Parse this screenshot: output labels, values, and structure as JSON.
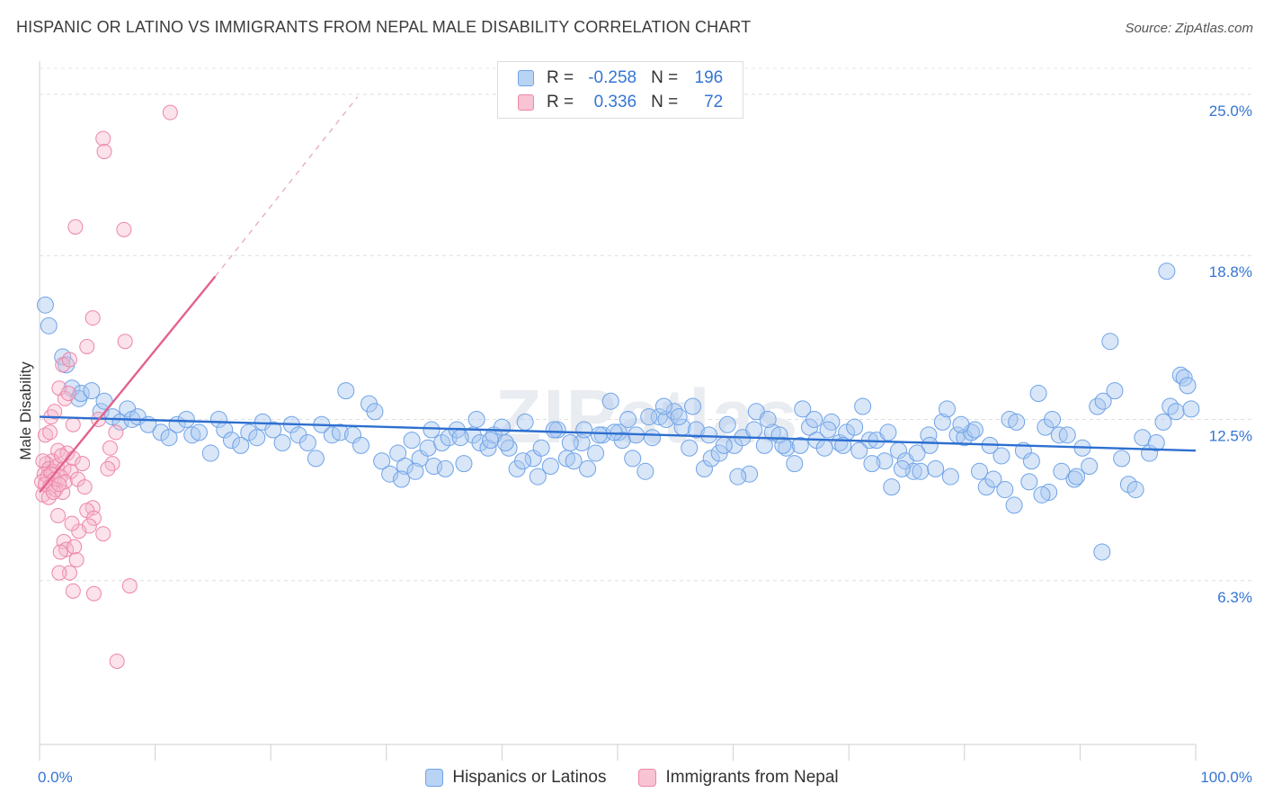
{
  "chart_data": {
    "type": "scatter",
    "title": "HISPANIC OR LATINO VS IMMIGRANTS FROM NEPAL MALE DISABILITY CORRELATION CHART",
    "source": "Source: ZipAtlas.com",
    "ylabel": "Male Disability",
    "xlabel": "",
    "xlim": [
      0,
      100
    ],
    "ylim": [
      0,
      26
    ],
    "x_tick_labels": [
      "0.0%",
      "100.0%"
    ],
    "y_ticks": [
      {
        "value": 6.3,
        "label": "6.3%"
      },
      {
        "value": 12.5,
        "label": "12.5%"
      },
      {
        "value": 18.8,
        "label": "18.8%"
      },
      {
        "value": 25.0,
        "label": "25.0%"
      }
    ],
    "grid": true,
    "watermark": "ZIPatlas",
    "legend_stats": [
      {
        "name": "Hispanics or Latinos",
        "r_label": "R =",
        "r": "-0.258",
        "n_label": "N =",
        "n": "196",
        "color": "#6fa3e8",
        "fill": "#b9d3f4"
      },
      {
        "name": "Immigrants from Nepal",
        "r_label": "R =",
        "r": "0.336",
        "n_label": "N =",
        "n": "72",
        "color": "#ee86a6",
        "fill": "#f8c4d4"
      }
    ],
    "series": [
      {
        "name": "Hispanics or Latinos",
        "color": "#6fa3e8",
        "fill": "rgba(168,200,240,0.45)",
        "trend": {
          "x0": 0,
          "y0": 12.6,
          "x1": 100,
          "y1": 11.3,
          "color": "#2d6fd0"
        },
        "points": [
          [
            0.5,
            16.9
          ],
          [
            0.8,
            16.1
          ],
          [
            2.0,
            14.9
          ],
          [
            2.3,
            14.6
          ],
          [
            2.8,
            13.7
          ],
          [
            3.4,
            13.3
          ],
          [
            3.6,
            13.5
          ],
          [
            4.5,
            13.6
          ],
          [
            5.3,
            12.8
          ],
          [
            5.6,
            13.2
          ],
          [
            6.3,
            12.6
          ],
          [
            7.0,
            12.4
          ],
          [
            7.6,
            12.9
          ],
          [
            8.0,
            12.5
          ],
          [
            8.5,
            12.6
          ],
          [
            9.4,
            12.3
          ],
          [
            10.5,
            12.0
          ],
          [
            11.2,
            11.8
          ],
          [
            11.9,
            12.3
          ],
          [
            12.7,
            12.5
          ],
          [
            13.2,
            11.9
          ],
          [
            13.8,
            12.0
          ],
          [
            14.8,
            11.2
          ],
          [
            15.5,
            12.5
          ],
          [
            16.0,
            12.1
          ],
          [
            16.6,
            11.7
          ],
          [
            17.4,
            11.5
          ],
          [
            18.1,
            12.0
          ],
          [
            18.8,
            11.8
          ],
          [
            19.3,
            12.4
          ],
          [
            20.2,
            12.1
          ],
          [
            21.0,
            11.6
          ],
          [
            21.8,
            12.3
          ],
          [
            22.4,
            11.9
          ],
          [
            23.2,
            11.6
          ],
          [
            23.9,
            11.0
          ],
          [
            24.4,
            12.3
          ],
          [
            25.3,
            11.9
          ],
          [
            26.0,
            12.0
          ],
          [
            26.5,
            13.6
          ],
          [
            27.1,
            11.9
          ],
          [
            27.8,
            11.5
          ],
          [
            28.5,
            13.1
          ],
          [
            29.0,
            12.8
          ],
          [
            29.6,
            10.9
          ],
          [
            30.3,
            10.4
          ],
          [
            31.0,
            11.2
          ],
          [
            31.6,
            10.7
          ],
          [
            32.2,
            11.7
          ],
          [
            32.9,
            11.0
          ],
          [
            33.6,
            11.4
          ],
          [
            34.1,
            10.7
          ],
          [
            34.8,
            11.6
          ],
          [
            35.4,
            11.8
          ],
          [
            36.1,
            12.1
          ],
          [
            36.7,
            10.8
          ],
          [
            37.5,
            11.9
          ],
          [
            38.1,
            11.6
          ],
          [
            38.8,
            11.4
          ],
          [
            39.3,
            11.9
          ],
          [
            40.0,
            12.2
          ],
          [
            40.6,
            11.4
          ],
          [
            41.3,
            10.6
          ],
          [
            42.0,
            12.4
          ],
          [
            42.7,
            11.0
          ],
          [
            43.4,
            11.4
          ],
          [
            44.2,
            10.7
          ],
          [
            44.8,
            12.1
          ],
          [
            45.6,
            11.0
          ],
          [
            46.2,
            10.9
          ],
          [
            46.9,
            11.6
          ],
          [
            47.4,
            10.6
          ],
          [
            48.1,
            11.2
          ],
          [
            48.7,
            11.9
          ],
          [
            49.4,
            13.2
          ],
          [
            50.1,
            12.0
          ],
          [
            50.9,
            12.5
          ],
          [
            51.6,
            11.9
          ],
          [
            52.4,
            10.5
          ],
          [
            53.0,
            11.8
          ],
          [
            53.6,
            12.6
          ],
          [
            54.2,
            12.5
          ],
          [
            54.9,
            12.8
          ],
          [
            55.6,
            12.2
          ],
          [
            56.2,
            11.4
          ],
          [
            56.8,
            12.1
          ],
          [
            57.5,
            10.6
          ],
          [
            58.1,
            11.0
          ],
          [
            58.8,
            11.2
          ],
          [
            59.5,
            12.3
          ],
          [
            60.1,
            11.5
          ],
          [
            60.8,
            11.8
          ],
          [
            61.4,
            10.4
          ],
          [
            62.0,
            12.8
          ],
          [
            62.7,
            11.5
          ],
          [
            63.4,
            12.0
          ],
          [
            64.0,
            11.9
          ],
          [
            64.6,
            11.4
          ],
          [
            65.3,
            10.8
          ],
          [
            66.0,
            12.9
          ],
          [
            66.6,
            12.2
          ],
          [
            67.2,
            11.7
          ],
          [
            67.9,
            11.4
          ],
          [
            68.5,
            12.4
          ],
          [
            69.2,
            11.6
          ],
          [
            69.8,
            12.0
          ],
          [
            70.5,
            12.2
          ],
          [
            71.2,
            13.0
          ],
          [
            71.8,
            11.7
          ],
          [
            72.4,
            11.7
          ],
          [
            73.1,
            10.9
          ],
          [
            73.7,
            9.9
          ],
          [
            74.3,
            11.3
          ],
          [
            74.9,
            10.9
          ],
          [
            75.6,
            10.5
          ],
          [
            76.2,
            10.5
          ],
          [
            76.9,
            11.9
          ],
          [
            77.5,
            10.6
          ],
          [
            78.1,
            12.4
          ],
          [
            78.8,
            10.3
          ],
          [
            79.4,
            11.9
          ],
          [
            80.0,
            11.8
          ],
          [
            80.6,
            12.0
          ],
          [
            81.3,
            10.5
          ],
          [
            81.9,
            9.9
          ],
          [
            82.5,
            10.2
          ],
          [
            83.2,
            11.1
          ],
          [
            83.9,
            12.5
          ],
          [
            84.5,
            12.4
          ],
          [
            85.1,
            11.3
          ],
          [
            85.8,
            10.9
          ],
          [
            86.4,
            13.5
          ],
          [
            87.0,
            12.2
          ],
          [
            87.6,
            12.5
          ],
          [
            88.2,
            11.9
          ],
          [
            88.9,
            11.9
          ],
          [
            89.5,
            10.2
          ],
          [
            90.2,
            11.4
          ],
          [
            90.8,
            10.7
          ],
          [
            91.5,
            13.0
          ],
          [
            92.0,
            13.2
          ],
          [
            92.6,
            15.5
          ],
          [
            93.0,
            13.6
          ],
          [
            93.6,
            11.0
          ],
          [
            94.2,
            10.0
          ],
          [
            94.8,
            9.8
          ],
          [
            95.4,
            11.8
          ],
          [
            96.0,
            11.2
          ],
          [
            96.6,
            11.6
          ],
          [
            97.2,
            12.4
          ],
          [
            97.8,
            13.0
          ],
          [
            98.3,
            12.8
          ],
          [
            98.7,
            14.2
          ],
          [
            99.0,
            14.1
          ],
          [
            99.3,
            13.8
          ],
          [
            99.6,
            12.9
          ],
          [
            97.5,
            18.2
          ],
          [
            91.9,
            7.4
          ],
          [
            89.7,
            10.3
          ],
          [
            88.4,
            10.5
          ],
          [
            87.3,
            9.7
          ],
          [
            86.7,
            9.6
          ],
          [
            85.6,
            10.1
          ],
          [
            84.3,
            9.2
          ],
          [
            83.5,
            9.8
          ],
          [
            82.2,
            11.5
          ],
          [
            80.9,
            12.1
          ],
          [
            79.7,
            12.3
          ],
          [
            78.5,
            12.9
          ],
          [
            77.0,
            11.5
          ],
          [
            75.9,
            11.2
          ],
          [
            74.6,
            10.6
          ],
          [
            73.4,
            12.0
          ],
          [
            72.0,
            10.8
          ],
          [
            70.9,
            11.3
          ],
          [
            69.5,
            11.5
          ],
          [
            68.2,
            12.1
          ],
          [
            67.0,
            12.5
          ],
          [
            65.8,
            11.5
          ],
          [
            64.3,
            11.5
          ],
          [
            63.0,
            12.5
          ],
          [
            61.8,
            12.1
          ],
          [
            60.4,
            10.3
          ],
          [
            59.2,
            11.5
          ],
          [
            57.9,
            11.9
          ],
          [
            56.5,
            13.0
          ],
          [
            55.3,
            12.6
          ],
          [
            54.0,
            13.0
          ],
          [
            52.7,
            12.6
          ],
          [
            51.3,
            11.0
          ],
          [
            50.4,
            11.7
          ],
          [
            49.7,
            12.0
          ],
          [
            48.4,
            11.9
          ],
          [
            47.1,
            12.1
          ],
          [
            45.9,
            11.6
          ],
          [
            44.5,
            12.1
          ],
          [
            43.1,
            10.3
          ],
          [
            41.8,
            10.9
          ],
          [
            40.3,
            11.6
          ],
          [
            39.0,
            11.7
          ],
          [
            37.8,
            12.5
          ],
          [
            36.4,
            11.8
          ],
          [
            35.1,
            10.6
          ],
          [
            33.9,
            12.1
          ],
          [
            32.5,
            10.5
          ],
          [
            31.3,
            10.2
          ]
        ]
      },
      {
        "name": "Immigrants from Nepal",
        "color": "#ee86a6",
        "fill": "rgba(246,182,204,0.40)",
        "trend": {
          "x0": 0,
          "y0": 9.7,
          "x1": 15.2,
          "y1": 18.0,
          "color": "#e3628c"
        },
        "trend_ext": {
          "x0": 15.2,
          "y0": 18.0,
          "x1": 27.5,
          "y1": 24.9,
          "color": "#e6a9bd"
        },
        "points": [
          [
            11.3,
            24.3
          ],
          [
            5.5,
            23.3
          ],
          [
            5.6,
            22.8
          ],
          [
            3.1,
            19.9
          ],
          [
            7.3,
            19.8
          ],
          [
            4.6,
            16.4
          ],
          [
            7.4,
            15.5
          ],
          [
            4.1,
            15.3
          ],
          [
            2.0,
            14.6
          ],
          [
            2.6,
            14.8
          ],
          [
            1.7,
            13.7
          ],
          [
            2.2,
            13.3
          ],
          [
            2.5,
            13.5
          ],
          [
            1.0,
            12.6
          ],
          [
            2.9,
            12.3
          ],
          [
            1.3,
            12.8
          ],
          [
            0.5,
            11.9
          ],
          [
            0.9,
            12.0
          ],
          [
            1.6,
            11.3
          ],
          [
            2.4,
            11.2
          ],
          [
            2.9,
            11.0
          ],
          [
            1.1,
            10.9
          ],
          [
            0.6,
            10.8
          ],
          [
            0.3,
            10.9
          ],
          [
            0.8,
            10.6
          ],
          [
            1.2,
            10.5
          ],
          [
            1.5,
            10.7
          ],
          [
            2.1,
            10.6
          ],
          [
            2.7,
            10.5
          ],
          [
            0.4,
            10.4
          ],
          [
            0.7,
            10.3
          ],
          [
            1.0,
            10.4
          ],
          [
            1.3,
            10.2
          ],
          [
            1.8,
            10.3
          ],
          [
            2.2,
            10.1
          ],
          [
            0.2,
            10.1
          ],
          [
            0.5,
            10.0
          ],
          [
            0.9,
            9.9
          ],
          [
            1.4,
            9.8
          ],
          [
            2.0,
            9.7
          ],
          [
            0.3,
            9.6
          ],
          [
            0.8,
            9.5
          ],
          [
            1.2,
            9.7
          ],
          [
            1.7,
            10.0
          ],
          [
            3.3,
            10.2
          ],
          [
            3.9,
            9.9
          ],
          [
            6.1,
            11.4
          ],
          [
            6.3,
            10.8
          ],
          [
            5.9,
            10.6
          ],
          [
            4.6,
            9.1
          ],
          [
            4.1,
            9.0
          ],
          [
            4.7,
            8.7
          ],
          [
            4.3,
            8.4
          ],
          [
            5.5,
            8.1
          ],
          [
            3.4,
            8.2
          ],
          [
            2.8,
            8.5
          ],
          [
            1.6,
            8.8
          ],
          [
            2.1,
            7.8
          ],
          [
            2.3,
            7.5
          ],
          [
            3.0,
            7.6
          ],
          [
            3.2,
            7.1
          ],
          [
            1.8,
            7.4
          ],
          [
            2.6,
            6.6
          ],
          [
            1.7,
            6.6
          ],
          [
            2.9,
            5.9
          ],
          [
            4.7,
            5.8
          ],
          [
            7.8,
            6.1
          ],
          [
            6.7,
            3.2
          ],
          [
            5.1,
            12.5
          ],
          [
            6.6,
            12.0
          ],
          [
            3.7,
            10.8
          ],
          [
            1.9,
            11.1
          ]
        ]
      }
    ]
  }
}
